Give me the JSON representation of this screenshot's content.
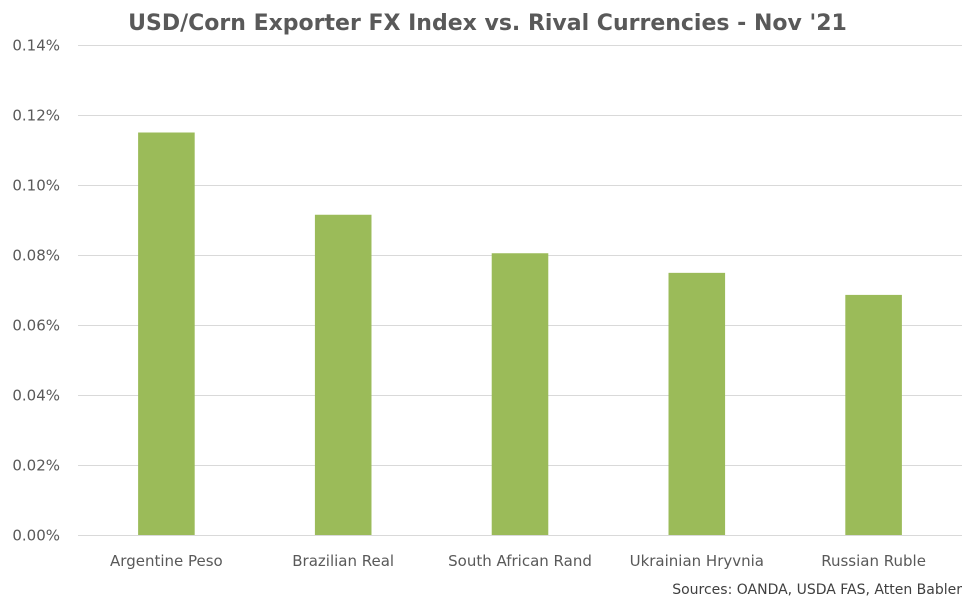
{
  "chart_data": {
    "type": "bar",
    "title": "USD/Corn Exporter FX Index vs. Rival Currencies - Nov '21",
    "xlabel": "",
    "ylabel": "",
    "categories": [
      "Argentine Peso",
      "Brazilian Real",
      "South African Rand",
      "Ukrainian Hryvnia",
      "Russian Ruble"
    ],
    "series": [
      {
        "values": [
          0.115,
          0.0915,
          0.0805,
          0.0749,
          0.0686
        ]
      }
    ],
    "ylim": [
      0,
      0.14
    ],
    "y_ticks": [
      0,
      0.02,
      0.04,
      0.06,
      0.08,
      0.1,
      0.12,
      0.14
    ],
    "y_tick_labels": [
      "0.00%",
      "0.02%",
      "0.04%",
      "0.06%",
      "0.08%",
      "0.10%",
      "0.12%",
      "0.14%"
    ],
    "grid": true,
    "legend": "none",
    "bar_color": "#9bbb59",
    "source_note": "Sources: OANDA, USDA FAS, Atten Babler"
  }
}
